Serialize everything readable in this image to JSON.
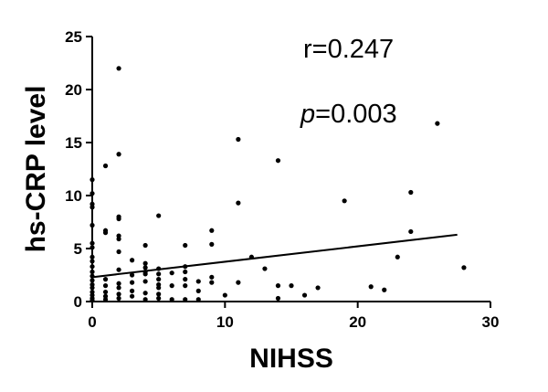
{
  "chart_data": {
    "type": "scatter",
    "xlabel": "NIHSS",
    "ylabel": "hs-CRP level",
    "xlim": [
      0,
      30
    ],
    "ylim": [
      0,
      25
    ],
    "x_ticks": [
      "0",
      "10",
      "20",
      "30"
    ],
    "y_ticks": [
      "0",
      "5",
      "10",
      "15",
      "20",
      "25"
    ],
    "grid": false,
    "annotations": {
      "r_text": "r=0.247",
      "p_symbol": "p",
      "p_value": "=0.003"
    },
    "points": [
      [
        0,
        0.1
      ],
      [
        0,
        0.3
      ],
      [
        0,
        0.6
      ],
      [
        0,
        0.9
      ],
      [
        0,
        1.3
      ],
      [
        0,
        1.6
      ],
      [
        0,
        2.0
      ],
      [
        0,
        2.4
      ],
      [
        0,
        2.8
      ],
      [
        0,
        3.3
      ],
      [
        0,
        3.8
      ],
      [
        0,
        4.2
      ],
      [
        0,
        5.1
      ],
      [
        0,
        5.5
      ],
      [
        0,
        7.2
      ],
      [
        0,
        8.9
      ],
      [
        0,
        9.2
      ],
      [
        0,
        10.2
      ],
      [
        0,
        11.5
      ],
      [
        1,
        0.2
      ],
      [
        1,
        0.5
      ],
      [
        1,
        0.9
      ],
      [
        1,
        1.5
      ],
      [
        1,
        2.1
      ],
      [
        1,
        6.5
      ],
      [
        1,
        6.7
      ],
      [
        1,
        12.8
      ],
      [
        2,
        0.3
      ],
      [
        2,
        0.7
      ],
      [
        2,
        1.3
      ],
      [
        2,
        1.7
      ],
      [
        2,
        3.0
      ],
      [
        2,
        4.7
      ],
      [
        2,
        5.9
      ],
      [
        2,
        6.2
      ],
      [
        2,
        7.8
      ],
      [
        2,
        8.0
      ],
      [
        2,
        13.9
      ],
      [
        2,
        22.0
      ],
      [
        3,
        0.5
      ],
      [
        3,
        1.0
      ],
      [
        3,
        1.8
      ],
      [
        3,
        2.5
      ],
      [
        3,
        3.9
      ],
      [
        4,
        0.2
      ],
      [
        4,
        0.8
      ],
      [
        4,
        1.9
      ],
      [
        4,
        2.6
      ],
      [
        4,
        2.8
      ],
      [
        4,
        3.2
      ],
      [
        4,
        3.6
      ],
      [
        4,
        5.3
      ],
      [
        5,
        0.3
      ],
      [
        5,
        0.7
      ],
      [
        5,
        1.3
      ],
      [
        5,
        1.6
      ],
      [
        5,
        2.1
      ],
      [
        5,
        2.6
      ],
      [
        5,
        3.1
      ],
      [
        5,
        8.1
      ],
      [
        6,
        0.2
      ],
      [
        6,
        1.5
      ],
      [
        6,
        2.7
      ],
      [
        7,
        0.2
      ],
      [
        7,
        1.5
      ],
      [
        7,
        2.1
      ],
      [
        7,
        2.8
      ],
      [
        7,
        3.3
      ],
      [
        7,
        5.3
      ],
      [
        8,
        0.2
      ],
      [
        8,
        1.0
      ],
      [
        8,
        1.9
      ],
      [
        9,
        1.8
      ],
      [
        9,
        2.3
      ],
      [
        9,
        5.4
      ],
      [
        9,
        6.7
      ],
      [
        10,
        0.6
      ],
      [
        11,
        1.8
      ],
      [
        11,
        9.3
      ],
      [
        11,
        15.3
      ],
      [
        12,
        4.2
      ],
      [
        13,
        3.1
      ],
      [
        14,
        0.3
      ],
      [
        14,
        1.5
      ],
      [
        14,
        13.3
      ],
      [
        15,
        1.5
      ],
      [
        16,
        0.6
      ],
      [
        17,
        1.3
      ],
      [
        19,
        9.5
      ],
      [
        21,
        1.4
      ],
      [
        22,
        1.1
      ],
      [
        23,
        4.2
      ],
      [
        24,
        6.6
      ],
      [
        24,
        10.3
      ],
      [
        26,
        16.8
      ],
      [
        28,
        3.2
      ]
    ],
    "fit_line": {
      "x": [
        0,
        27.5
      ],
      "y": [
        2.3,
        6.3
      ]
    }
  }
}
